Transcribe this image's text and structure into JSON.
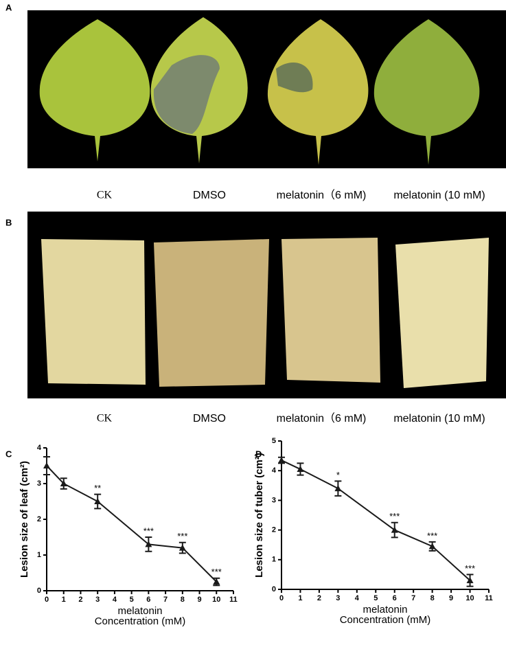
{
  "figure": {
    "panel_labels": [
      "A",
      "B",
      "C",
      "D"
    ],
    "leaf_captions": [
      "CK",
      "DMSO",
      "melatonin（6 mM)",
      "melatonin (10 mM)"
    ],
    "tuber_captions": [
      "CK",
      "DMSO",
      "melatonin（6 mM)",
      "melatonin (10 mM)"
    ]
  },
  "chart_data": [
    {
      "type": "line",
      "ylabel": "Lesion size of leaf (cm²)",
      "xlabel_lines": [
        "melatonin",
        "Concentration (mM)"
      ],
      "x": [
        0,
        1,
        3,
        6,
        8,
        10
      ],
      "values": [
        3.5,
        3.0,
        2.5,
        1.3,
        1.2,
        0.25
      ],
      "errors": [
        0.25,
        0.15,
        0.2,
        0.2,
        0.15,
        0.1
      ],
      "value_annotations": [
        null,
        null,
        "**",
        "***",
        "***",
        "***"
      ],
      "color": "#1a1a1a",
      "xlim": [
        0,
        11
      ],
      "xticks": [
        0,
        1,
        2,
        3,
        4,
        5,
        6,
        7,
        8,
        9,
        10,
        11
      ],
      "ylim": [
        0,
        4
      ],
      "yticks": [
        0,
        1,
        2,
        3,
        4
      ]
    },
    {
      "type": "line",
      "ylabel": "Lesion size of tuber (cm²)",
      "xlabel_lines": [
        "melatonin",
        "Concentration (mM)"
      ],
      "x": [
        0,
        1,
        3,
        6,
        8,
        10
      ],
      "values": [
        4.35,
        4.05,
        3.4,
        2.0,
        1.45,
        0.3
      ],
      "errors": [
        0.1,
        0.2,
        0.25,
        0.25,
        0.15,
        0.2
      ],
      "value_annotations": [
        null,
        null,
        "*",
        "***",
        "***",
        "***"
      ],
      "color": "#1a1a1a",
      "xlim": [
        0,
        11
      ],
      "xticks": [
        0,
        1,
        2,
        3,
        4,
        5,
        6,
        7,
        8,
        9,
        10,
        11
      ],
      "ylim": [
        0,
        5
      ],
      "yticks": [
        0,
        1,
        2,
        3,
        4,
        5
      ]
    }
  ]
}
